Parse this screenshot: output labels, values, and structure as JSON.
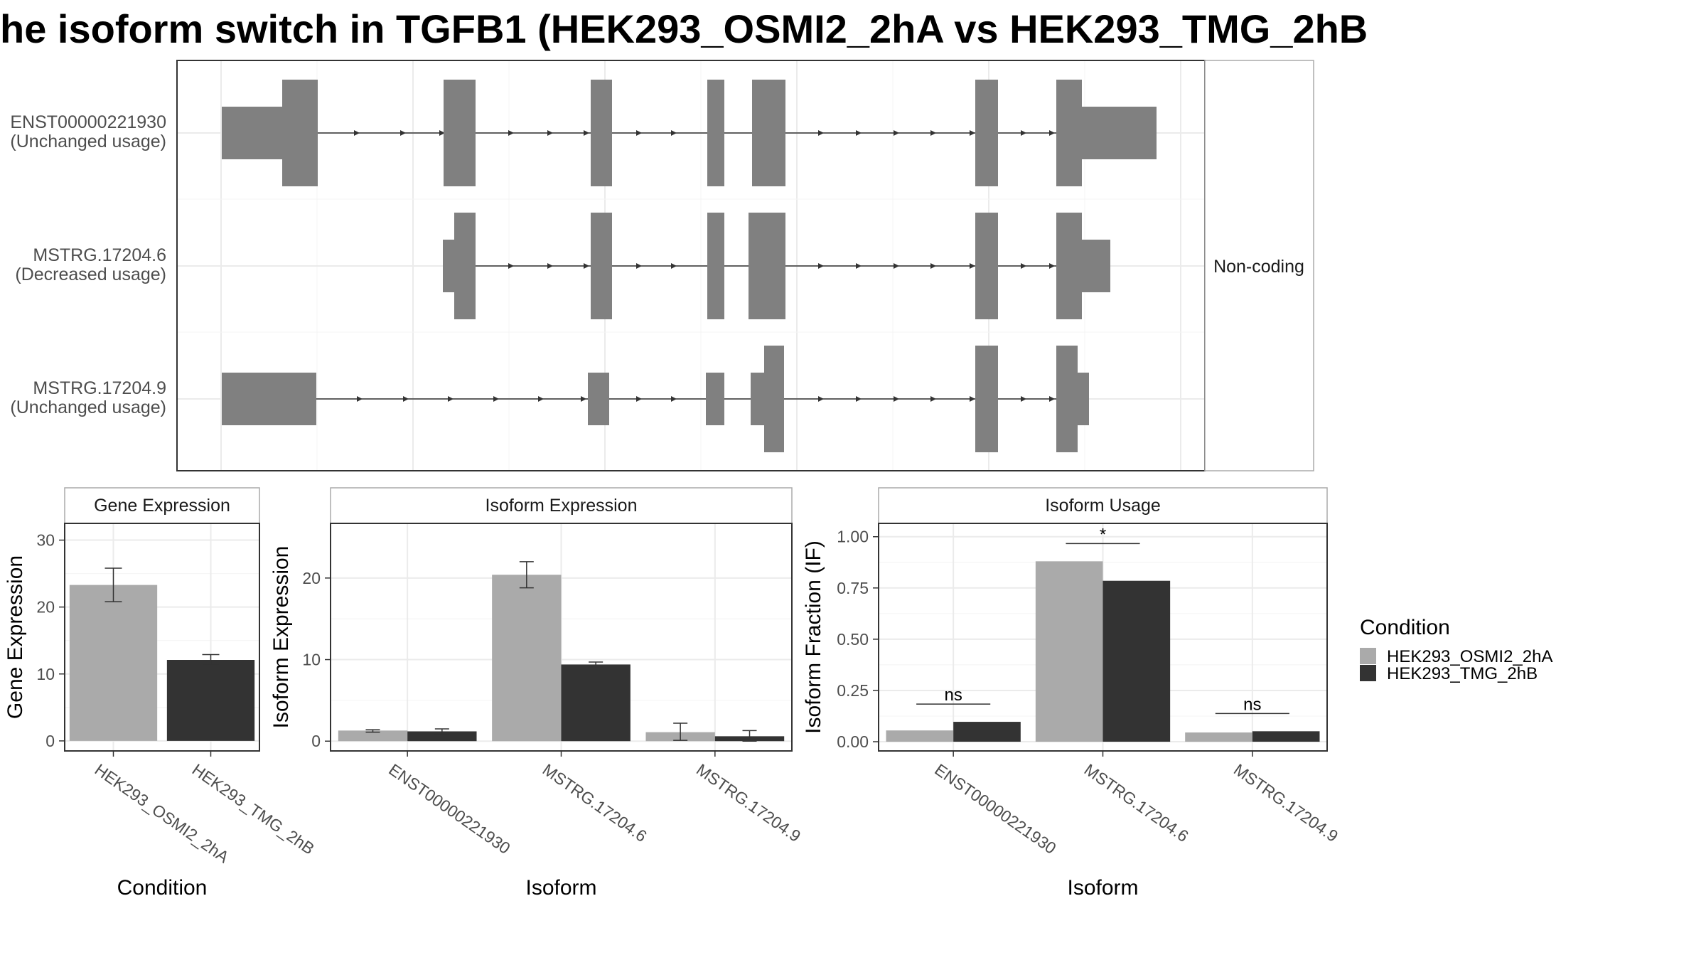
{
  "title": "he isoform switch in TGFB1 (HEK293_OSMI2_2hA vs HEK293_TMG_2hB",
  "colors": {
    "condition_a": "#aaaaaa",
    "condition_b": "#333333",
    "exon": "#808080",
    "grid": "#ebebeb",
    "panel_border": "#333333",
    "strip_border": "#aaaaaa"
  },
  "chart_data": [
    {
      "type": "gene-structure",
      "facet_label": "Non-coding",
      "transcripts": [
        {
          "label": "ENST00000221930\n(Unchanged usage)"
        },
        {
          "label": "MSTRG.17204.6\n(Decreased usage)"
        },
        {
          "label": "MSTRG.17204.9\n(Unchanged usage)"
        }
      ]
    },
    {
      "type": "bar",
      "strip": "Gene Expression",
      "xlabel": "Condition",
      "ylabel": "Gene Expression",
      "ylim": [
        -1.5,
        32.5
      ],
      "yticks": [
        0,
        10,
        20,
        30
      ],
      "categories": [
        "HEK293_OSMI2_2hA",
        "HEK293_TMG_2hB"
      ],
      "values": [
        23.3,
        12.1
      ],
      "error_low": [
        20.8,
        11.3
      ],
      "error_high": [
        25.8,
        12.9
      ]
    },
    {
      "type": "bar",
      "strip": "Isoform Expression",
      "xlabel": "Isoform",
      "ylabel": "Isoform Expression",
      "ylim": [
        -1.2,
        26.7
      ],
      "yticks": [
        0,
        10,
        20
      ],
      "categories": [
        "ENST00000221930",
        "MSTRG.17204.6",
        "MSTRG.17204.9"
      ],
      "series": [
        {
          "name": "HEK293_OSMI2_2hA",
          "values": [
            1.3,
            20.4,
            1.1
          ],
          "error_low": [
            1.1,
            18.8,
            0.1
          ],
          "error_high": [
            1.4,
            22.0,
            2.2
          ]
        },
        {
          "name": "HEK293_TMG_2hB",
          "values": [
            1.2,
            9.4,
            0.6
          ],
          "error_low": [
            0.8,
            9.1,
            0.0
          ],
          "error_high": [
            1.5,
            9.7,
            1.3
          ]
        }
      ]
    },
    {
      "type": "bar",
      "strip": "Isoform Usage",
      "xlabel": "Isoform",
      "ylabel": "Isoform Fraction (IF)",
      "ylim": [
        -0.045,
        1.065
      ],
      "yticks": [
        0,
        0.25,
        0.5,
        0.75,
        1.0
      ],
      "ytick_labels": [
        "0.00",
        "0.25",
        "0.50",
        "0.75",
        "1.00"
      ],
      "categories": [
        "ENST00000221930",
        "MSTRG.17204.6",
        "MSTRG.17204.9"
      ],
      "series": [
        {
          "name": "HEK293_OSMI2_2hA",
          "values": [
            0.055,
            0.88,
            0.045
          ]
        },
        {
          "name": "HEK293_TMG_2hB",
          "values": [
            0.097,
            0.785,
            0.051
          ]
        }
      ],
      "significance": [
        "ns",
        "*",
        "ns"
      ]
    }
  ],
  "legend": {
    "title": "Condition",
    "items": [
      "HEK293_OSMI2_2hA",
      "HEK293_TMG_2hB"
    ]
  }
}
